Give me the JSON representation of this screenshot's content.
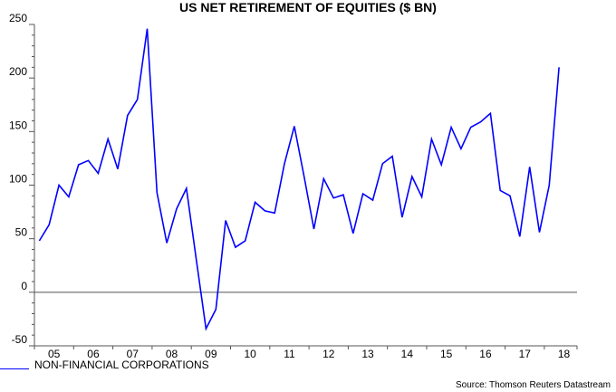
{
  "chart_data": {
    "type": "line",
    "title": "US NET RETIREMENT OF EQUITIES ($ BN)",
    "xlabel": "",
    "ylabel": "",
    "frequency": "quarterly",
    "x_start": "2005Q1",
    "x_end": "2018Q2",
    "x_tick_labels": [
      "05",
      "06",
      "07",
      "08",
      "09",
      "10",
      "11",
      "12",
      "13",
      "14",
      "15",
      "16",
      "17",
      "18"
    ],
    "y_ticks": [
      -50,
      0,
      50,
      100,
      150,
      200,
      250
    ],
    "ylim": [
      -50,
      250
    ],
    "grid": false,
    "zero_line": true,
    "legend_placement": "bottom-left",
    "series": [
      {
        "name": "NON-FINANCIAL CORPORATIONS",
        "color": "#0000ff",
        "values": [
          48,
          63,
          100,
          89,
          119,
          123,
          111,
          143,
          115,
          165,
          180,
          246,
          93,
          46,
          78,
          97,
          31,
          -34,
          -16,
          67,
          42,
          48,
          84,
          76,
          74,
          120,
          155,
          108,
          59,
          106,
          88,
          91,
          55,
          92,
          86,
          120,
          127,
          70,
          108,
          89,
          143,
          119,
          154,
          134,
          154,
          159,
          167,
          95,
          90,
          52,
          117,
          56,
          100,
          210
        ]
      }
    ]
  },
  "source": "Source: Thomson Reuters Datastream"
}
